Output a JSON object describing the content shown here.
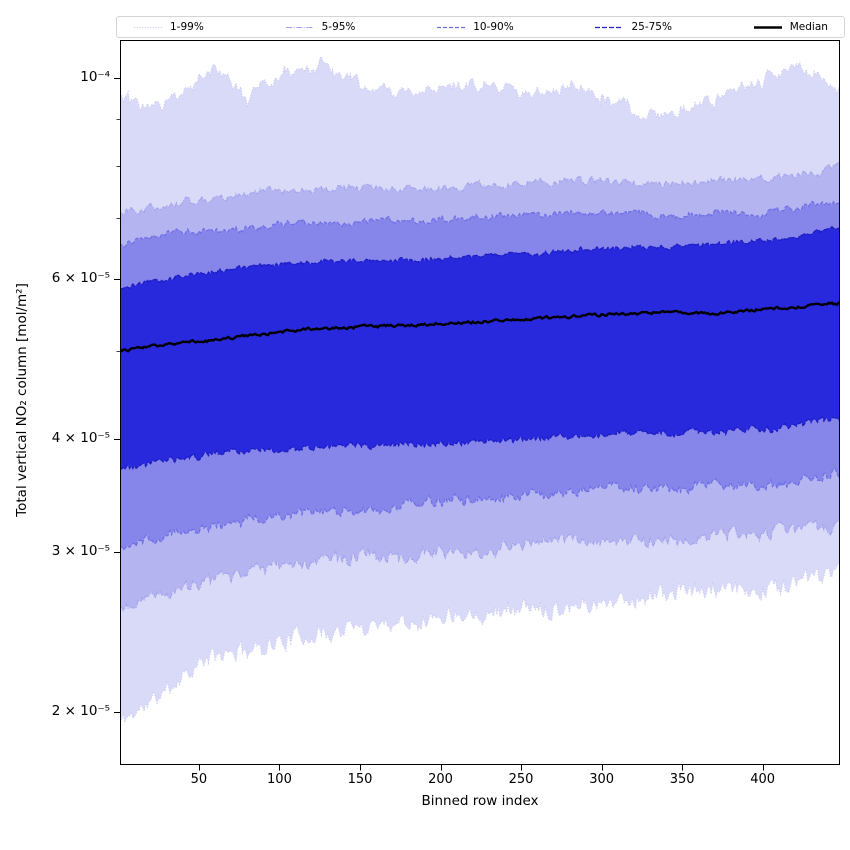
{
  "figure": {
    "background": "#ffffff"
  },
  "legend": {
    "entries": [
      {
        "label": "1-99%",
        "color": "#c9c9f4",
        "dash": [
          1,
          1.7
        ],
        "width": 1.1
      },
      {
        "label": "5-95%",
        "color": "#a4a4ee",
        "dash": [
          6,
          1.6,
          1,
          1.6
        ],
        "width": 1.1
      },
      {
        "label": "10-90%",
        "color": "#6e6ee6",
        "dash": [
          4,
          2
        ],
        "width": 1.2
      },
      {
        "label": "25-75%",
        "color": "#1e1ec4",
        "dash": [
          5,
          2
        ],
        "width": 1.3
      },
      {
        "label": "Median",
        "color": "#000000",
        "dash": [],
        "width": 2.6
      }
    ]
  },
  "chart_data": {
    "type": "area",
    "title": "",
    "xlabel": "Binned row index",
    "ylabel": "Total vertical NO₂ column [mol/m²]",
    "xlim": [
      1,
      448
    ],
    "ylim": [
      1.75e-05,
      0.00011
    ],
    "yscale": "log",
    "grid": false,
    "legend_position": "top",
    "xticks": {
      "values": [
        50,
        100,
        150,
        200,
        250,
        300,
        350,
        400
      ],
      "labels": [
        "50",
        "100",
        "150",
        "200",
        "250",
        "300",
        "350",
        "400"
      ]
    },
    "yticks": {
      "major_values": [
        0.0001,
        6e-05,
        4e-05,
        3e-05,
        2e-05
      ],
      "major_labels": [
        "10⁻⁴",
        "6 × 10⁻⁵",
        "4 × 10⁻⁵",
        "3 × 10⁻⁵",
        "2 × 10⁻⁵"
      ],
      "minor_values": [
        5e-05,
        7e-05,
        8e-05,
        9e-05
      ]
    },
    "control_x": [
      1,
      20,
      40,
      60,
      80,
      100,
      130,
      160,
      190,
      220,
      250,
      280,
      310,
      340,
      370,
      400,
      425,
      448
    ],
    "series": {
      "p1": {
        "values": [
          1.95e-05,
          2.05e-05,
          2.2e-05,
          2.3e-05,
          2.35e-05,
          2.4e-05,
          2.45e-05,
          2.5e-05,
          2.55e-05,
          2.58e-05,
          2.6e-05,
          2.63e-05,
          2.66e-05,
          2.7e-05,
          2.72e-05,
          2.75e-05,
          2.8e-05,
          2.85e-05
        ],
        "jitter": 0.02,
        "wave": 0.008
      },
      "p5": {
        "values": [
          2.6e-05,
          2.68e-05,
          2.75e-05,
          2.8e-05,
          2.85e-05,
          2.9e-05,
          2.93e-05,
          2.96e-05,
          3e-05,
          3.02e-05,
          3.05e-05,
          3.08e-05,
          3.1e-05,
          3.1e-05,
          3.12e-05,
          3.15e-05,
          3.18e-05,
          3.22e-05
        ],
        "jitter": 0.014,
        "wave": 0.006
      },
      "p10": {
        "values": [
          3.05e-05,
          3.1e-05,
          3.15e-05,
          3.2e-05,
          3.25e-05,
          3.3e-05,
          3.33e-05,
          3.37e-05,
          3.4e-05,
          3.42e-05,
          3.45e-05,
          3.5e-05,
          3.52e-05,
          3.53e-05,
          3.55e-05,
          3.55e-05,
          3.6e-05,
          3.68e-05
        ],
        "jitter": 0.011,
        "wave": 0.005
      },
      "p25": {
        "values": [
          3.7e-05,
          3.75e-05,
          3.8e-05,
          3.85e-05,
          3.88e-05,
          3.9e-05,
          3.92e-05,
          3.94e-05,
          3.95e-05,
          3.97e-05,
          4e-05,
          4.02e-05,
          4.05e-05,
          4.06e-05,
          4.08e-05,
          4.1e-05,
          4.15e-05,
          4.2e-05
        ],
        "jitter": 0.007,
        "wave": 0.003
      },
      "median": {
        "values": [
          5e-05,
          5.05e-05,
          5.1e-05,
          5.15e-05,
          5.2e-05,
          5.25e-05,
          5.3e-05,
          5.32e-05,
          5.35e-05,
          5.38e-05,
          5.42e-05,
          5.45e-05,
          5.5e-05,
          5.52e-05,
          5.5e-05,
          5.55e-05,
          5.6e-05,
          5.65e-05
        ],
        "jitter": 0.003,
        "wave": 0.0015
      },
      "p75": {
        "values": [
          5.85e-05,
          5.95e-05,
          6.05e-05,
          6.1e-05,
          6.2e-05,
          6.25e-05,
          6.28e-05,
          6.3e-05,
          6.3e-05,
          6.35e-05,
          6.4e-05,
          6.45e-05,
          6.5e-05,
          6.5e-05,
          6.55e-05,
          6.6e-05,
          6.7e-05,
          6.85e-05
        ],
        "jitter": 0.005,
        "wave": 0.003
      },
      "p90": {
        "values": [
          6.55e-05,
          6.65e-05,
          6.75e-05,
          6.8e-05,
          6.85e-05,
          6.9e-05,
          6.92e-05,
          6.95e-05,
          6.95e-05,
          7e-05,
          7.05e-05,
          7.1e-05,
          7.1e-05,
          7.05e-05,
          7.1e-05,
          7.1e-05,
          7.2e-05,
          7.3e-05
        ],
        "jitter": 0.007,
        "wave": 0.003
      },
      "p95": {
        "values": [
          7.1e-05,
          7.2e-05,
          7.3e-05,
          7.35e-05,
          7.45e-05,
          7.5e-05,
          7.52e-05,
          7.55e-05,
          7.55e-05,
          7.6e-05,
          7.65e-05,
          7.7e-05,
          7.7e-05,
          7.65e-05,
          7.7e-05,
          7.7e-05,
          7.8e-05,
          7.95e-05
        ],
        "jitter": 0.009,
        "wave": 0.004
      },
      "p99": {
        "values": [
          9.6e-05,
          9.1e-05,
          9.5e-05,
          0.000102,
          9.4e-05,
          9.9e-05,
          0.0001025,
          9.6e-05,
          9.5e-05,
          9.9e-05,
          9.6e-05,
          9.9e-05,
          9.4e-05,
          9.15e-05,
          9.5e-05,
          9.9e-05,
          0.000103,
          9.7e-05
        ],
        "jitter": 0.013,
        "wave": 0.02
      }
    },
    "bands": [
      {
        "name": "1-99%",
        "lower": "p1",
        "upper": "p99",
        "fill": "#d9d9f8",
        "edge": "#c9c9f4",
        "dash": [
          1,
          1.7
        ],
        "edge_width": 1.1
      },
      {
        "name": "5-95%",
        "lower": "p5",
        "upper": "p95",
        "fill": "#b4b4f1",
        "edge": "#a4a4ee",
        "dash": [
          6,
          1.6,
          1,
          1.6
        ],
        "edge_width": 1.1
      },
      {
        "name": "10-90%",
        "lower": "p10",
        "upper": "p90",
        "fill": "#8686ea",
        "edge": "#6e6ee6",
        "dash": [
          4,
          2
        ],
        "edge_width": 1.2
      },
      {
        "name": "25-75%",
        "lower": "p25",
        "upper": "p75",
        "fill": "#2828dd",
        "edge": "#1e1ec4",
        "dash": [
          5,
          2
        ],
        "edge_width": 1.3
      }
    ],
    "median_style": {
      "name": "Median",
      "color": "#000000",
      "width": 2.4
    }
  }
}
